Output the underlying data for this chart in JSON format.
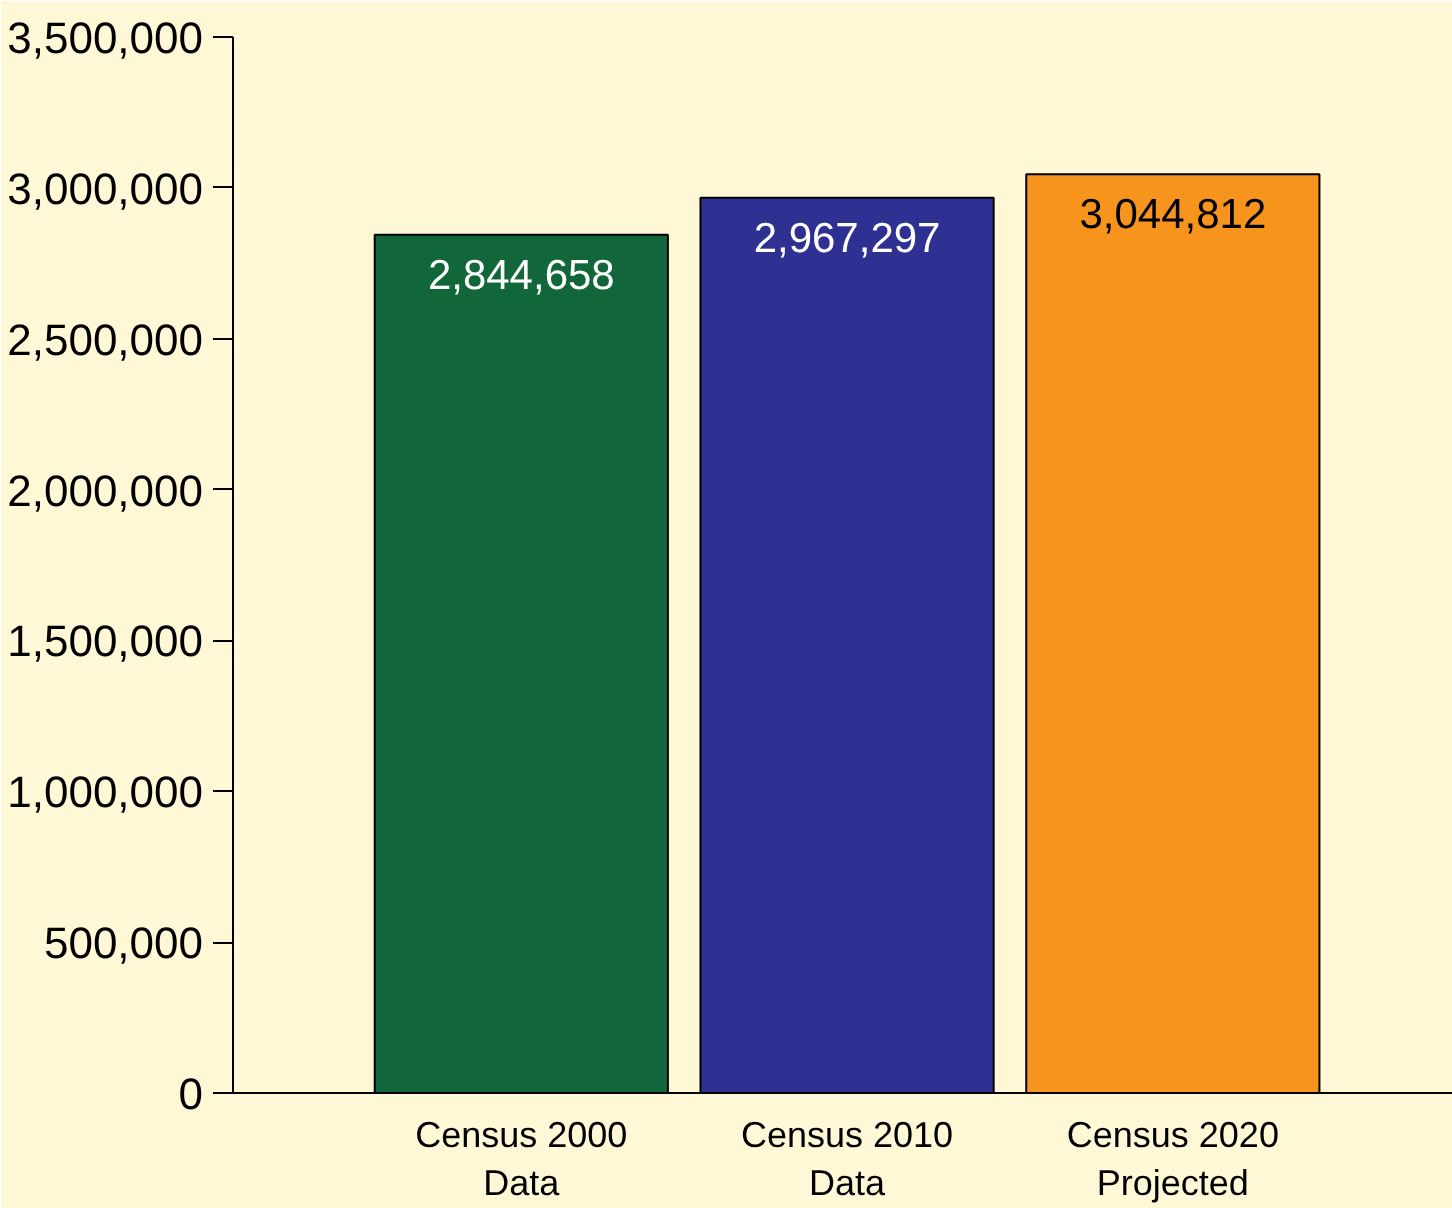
{
  "chart_data": {
    "type": "bar",
    "categories": [
      "Census 2000\nData",
      "Census 2010\nData",
      "Census 2020\nProjected"
    ],
    "values": [
      2844658,
      2967297,
      3044812
    ],
    "colors": [
      "#12673a",
      "#2e3192",
      "#f7941d"
    ],
    "ylim": [
      0,
      3500000
    ],
    "yticks": [
      {
        "value": 0,
        "label": "0"
      },
      {
        "value": 500000,
        "label": "500,000"
      },
      {
        "value": 1000000,
        "label": "1,000,000"
      },
      {
        "value": 1500000,
        "label": "1,500,000"
      },
      {
        "value": 2000000,
        "label": "2,000,000"
      },
      {
        "value": 2500000,
        "label": "2,500,000"
      },
      {
        "value": 3000000,
        "label": "3,000,000"
      },
      {
        "value": 3500000,
        "label": "3,500,000"
      }
    ],
    "value_labels": [
      "2,844,658",
      "2,967,297",
      "3,044,812"
    ],
    "grid": false
  }
}
